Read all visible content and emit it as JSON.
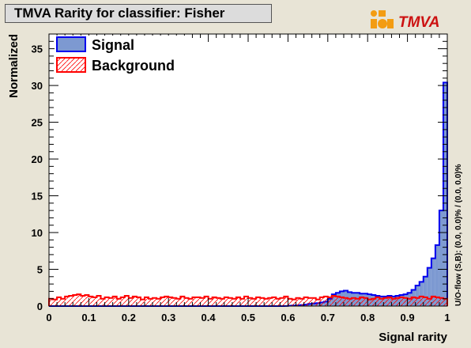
{
  "title": "TMVA Rarity for classifier: Fisher",
  "logo_text": "TMVA",
  "overflow_text": "U/O-flow (S,B): (0.0, 0.0)% / (0.0, 0.0)%",
  "colors": {
    "background": "#e8e4d6",
    "signal_fill": "#7d99d1",
    "signal_line": "#0000ee",
    "background_line": "#ff0000",
    "logo_orange": "#f39c12",
    "logo_red": "#cc1111"
  },
  "chart_data": {
    "type": "histogram",
    "xlabel": "Signal rarity",
    "ylabel": "Normalized",
    "xlim": [
      0,
      1
    ],
    "ylim": [
      0,
      37
    ],
    "xticks": [
      "0",
      "0.1",
      "0.2",
      "0.3",
      "0.4",
      "0.5",
      "0.6",
      "0.7",
      "0.8",
      "0.9",
      "1"
    ],
    "yticks": [
      "0",
      "5",
      "10",
      "15",
      "20",
      "25",
      "30",
      "35"
    ],
    "legend_position": "top-left",
    "bin_width": 0.01,
    "series": [
      {
        "name": "Signal",
        "style": "filled-blue",
        "values": [
          0,
          0,
          0,
          0,
          0,
          0,
          0,
          0,
          0,
          0,
          0,
          0,
          0,
          0,
          0,
          0,
          0,
          0,
          0,
          0,
          0,
          0,
          0,
          0,
          0,
          0,
          0,
          0,
          0,
          0,
          0,
          0,
          0,
          0,
          0,
          0,
          0,
          0,
          0,
          0,
          0,
          0,
          0,
          0,
          0,
          0,
          0,
          0,
          0,
          0,
          0,
          0,
          0,
          0,
          0,
          0,
          0,
          0,
          0,
          0.02,
          0.05,
          0.08,
          0.1,
          0.15,
          0.2,
          0.3,
          0.35,
          0.4,
          0.5,
          0.6,
          1.0,
          1.6,
          1.8,
          2.0,
          2.1,
          1.9,
          1.8,
          1.8,
          1.7,
          1.7,
          1.6,
          1.5,
          1.4,
          1.3,
          1.3,
          1.4,
          1.3,
          1.4,
          1.5,
          1.6,
          1.8,
          2.2,
          2.8,
          3.3,
          4.0,
          5.2,
          6.5,
          8.3,
          13.0,
          30.4
        ]
      },
      {
        "name": "Background",
        "style": "hatched-red",
        "values": [
          1.0,
          0.9,
          1.2,
          1.0,
          1.3,
          1.4,
          1.5,
          1.6,
          1.4,
          1.5,
          1.3,
          1.2,
          1.4,
          1.0,
          1.2,
          1.1,
          1.3,
          1.0,
          1.2,
          1.4,
          1.1,
          1.3,
          1.2,
          0.9,
          1.2,
          1.0,
          1.1,
          1.0,
          1.2,
          1.3,
          1.2,
          1.1,
          1.0,
          1.3,
          1.1,
          1.0,
          1.2,
          1.2,
          1.1,
          1.3,
          1.0,
          1.2,
          1.1,
          1.0,
          1.2,
          1.1,
          1.0,
          1.2,
          1.0,
          1.3,
          1.1,
          1.0,
          1.2,
          1.1,
          1.0,
          1.1,
          1.2,
          1.0,
          1.1,
          1.3,
          1.0,
          0.9,
          1.1,
          1.0,
          1.2,
          1.1,
          1.1,
          0.9,
          1.2,
          1.3,
          1.2,
          1.4,
          1.3,
          1.2,
          1.1,
          1.0,
          1.1,
          1.0,
          1.2,
          1.1,
          0.9,
          1.0,
          1.2,
          1.0,
          1.1,
          1.2,
          1.0,
          1.1,
          1.2,
          1.1,
          1.0,
          1.2,
          1.1,
          1.3,
          1.2,
          1.0,
          1.3,
          1.2,
          1.1,
          1.0
        ]
      }
    ]
  }
}
